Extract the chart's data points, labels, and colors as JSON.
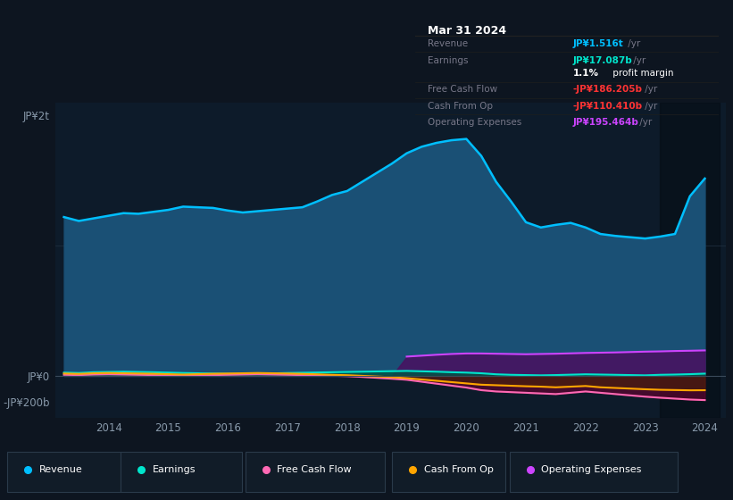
{
  "background_color": "#0d1520",
  "plot_bg_color": "#0d1b2a",
  "title": "Mar 31 2024",
  "tooltip": {
    "Revenue": {
      "value": "JP¥1.516t",
      "color": "#00bfff"
    },
    "Earnings": {
      "value": "JP¥17.087b",
      "color": "#00e5cc"
    },
    "profit_margin": "1.1% profit margin",
    "Free Cash Flow": {
      "value": "-JP¥186.205b",
      "color": "#ff3333"
    },
    "Cash From Op": {
      "value": "-JP¥110.410b",
      "color": "#ff3333"
    },
    "Operating Expenses": {
      "value": "JP¥195.464b",
      "color": "#cc44ff"
    }
  },
  "years": [
    2013.25,
    2013.5,
    2013.75,
    2014.0,
    2014.25,
    2014.5,
    2014.75,
    2015.0,
    2015.25,
    2015.5,
    2015.75,
    2016.0,
    2016.25,
    2016.5,
    2016.75,
    2017.0,
    2017.25,
    2017.5,
    2017.75,
    2018.0,
    2018.25,
    2018.5,
    2018.75,
    2019.0,
    2019.25,
    2019.5,
    2019.75,
    2020.0,
    2020.25,
    2020.5,
    2020.75,
    2021.0,
    2021.25,
    2021.5,
    2021.75,
    2022.0,
    2022.25,
    2022.5,
    2022.75,
    2023.0,
    2023.25,
    2023.5,
    2023.75,
    2024.0
  ],
  "revenue": [
    1220,
    1190,
    1210,
    1230,
    1250,
    1245,
    1260,
    1275,
    1300,
    1295,
    1290,
    1270,
    1255,
    1265,
    1275,
    1285,
    1295,
    1340,
    1390,
    1420,
    1490,
    1560,
    1630,
    1710,
    1760,
    1790,
    1810,
    1820,
    1690,
    1490,
    1340,
    1180,
    1140,
    1160,
    1175,
    1140,
    1090,
    1075,
    1065,
    1055,
    1070,
    1090,
    1380,
    1516
  ],
  "earnings": [
    25,
    22,
    28,
    30,
    32,
    30,
    28,
    25,
    22,
    20,
    18,
    16,
    15,
    17,
    19,
    22,
    24,
    26,
    28,
    30,
    32,
    34,
    36,
    38,
    35,
    32,
    28,
    25,
    20,
    12,
    8,
    6,
    4,
    6,
    9,
    12,
    10,
    8,
    6,
    4,
    8,
    10,
    13,
    17.087
  ],
  "free_cash_flow": [
    8,
    6,
    10,
    12,
    10,
    8,
    6,
    4,
    2,
    4,
    6,
    8,
    10,
    12,
    10,
    8,
    6,
    3,
    1,
    -2,
    -8,
    -15,
    -22,
    -30,
    -45,
    -60,
    -75,
    -90,
    -110,
    -120,
    -125,
    -130,
    -135,
    -140,
    -130,
    -120,
    -130,
    -140,
    -150,
    -160,
    -168,
    -175,
    -182,
    -186.205
  ],
  "cash_from_op": [
    18,
    15,
    20,
    22,
    20,
    18,
    16,
    13,
    10,
    13,
    16,
    18,
    20,
    22,
    20,
    18,
    15,
    12,
    8,
    5,
    0,
    -5,
    -10,
    -18,
    -28,
    -38,
    -48,
    -58,
    -68,
    -72,
    -76,
    -80,
    -83,
    -88,
    -83,
    -78,
    -88,
    -93,
    -98,
    -103,
    -107,
    -109,
    -111,
    -110.41
  ],
  "operating_expenses": [
    0,
    0,
    0,
    0,
    0,
    0,
    0,
    0,
    0,
    0,
    0,
    0,
    0,
    0,
    0,
    0,
    0,
    0,
    0,
    0,
    0,
    0,
    0,
    148,
    155,
    162,
    168,
    172,
    172,
    170,
    168,
    166,
    168,
    170,
    173,
    176,
    178,
    180,
    183,
    186,
    188,
    191,
    193,
    195.464
  ],
  "revenue_color": "#00bfff",
  "revenue_fill": "#1a5075",
  "earnings_color": "#00e5cc",
  "earnings_fill": "#005544",
  "free_cash_flow_color": "#ff69b4",
  "free_cash_flow_fill": "#6b0030",
  "cash_from_op_color": "#ffa500",
  "cash_from_op_fill": "#4a2800",
  "operating_expenses_color": "#cc44ff",
  "operating_expenses_fill": "#4a1060",
  "legend_items": [
    {
      "label": "Revenue",
      "color": "#00bfff"
    },
    {
      "label": "Earnings",
      "color": "#00e5cc"
    },
    {
      "label": "Free Cash Flow",
      "color": "#ff69b4"
    },
    {
      "label": "Cash From Op",
      "color": "#ffa500"
    },
    {
      "label": "Operating Expenses",
      "color": "#cc44ff"
    }
  ],
  "ytick_vals": [
    -200,
    0,
    2000
  ],
  "ytick_labels": [
    "-JP¥200b",
    "JP¥0",
    "JP¥2t"
  ],
  "xtick_years": [
    2014,
    2015,
    2016,
    2017,
    2018,
    2019,
    2020,
    2021,
    2022,
    2023,
    2024
  ],
  "highlight_start": 2023.25,
  "highlight_end": 2024.25,
  "ylim": [
    -320,
    2100
  ],
  "xlim": [
    2013.1,
    2024.35
  ]
}
